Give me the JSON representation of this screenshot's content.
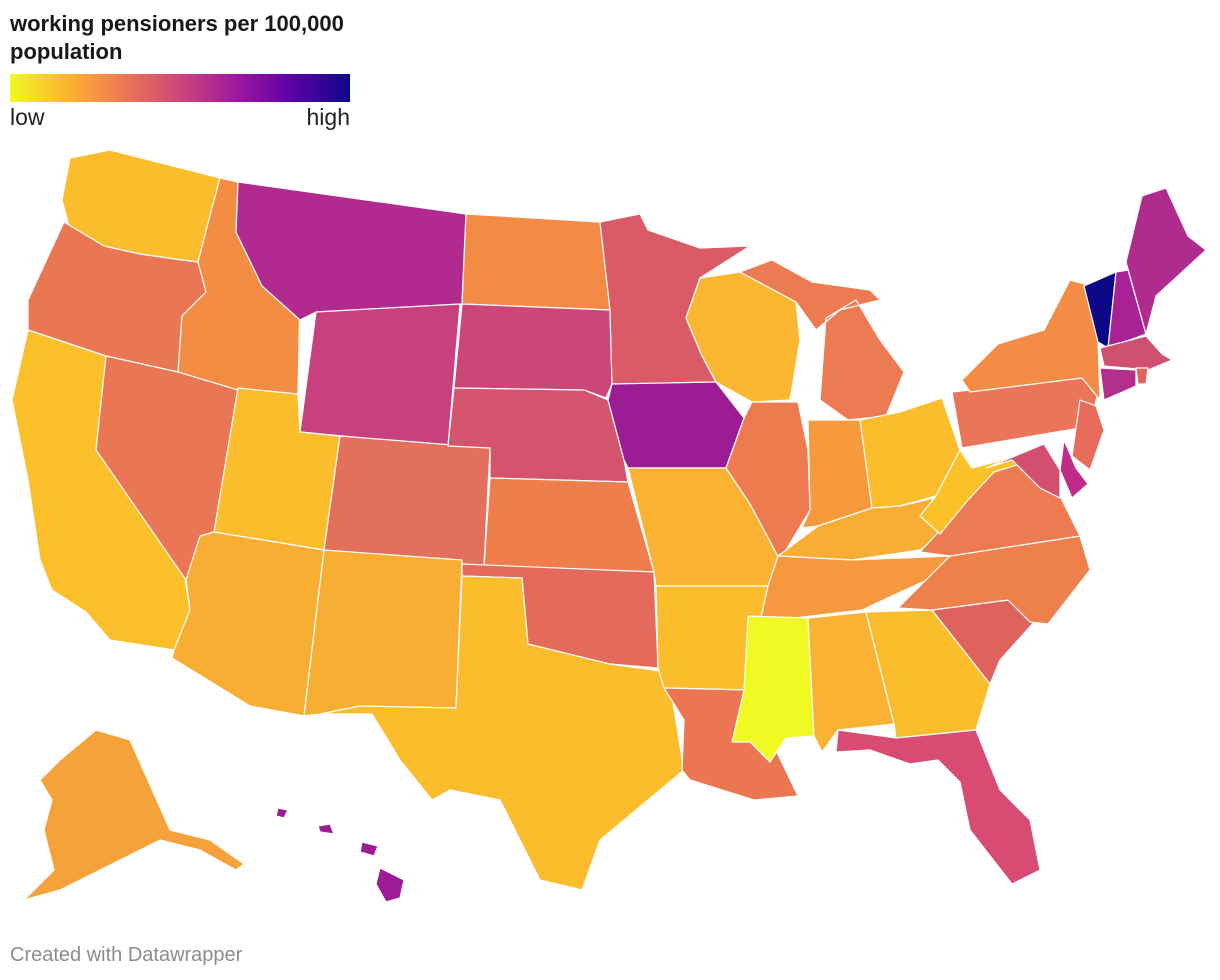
{
  "title": "working pensioners per 100,000 population",
  "legend": {
    "low_label": "low",
    "high_label": "high",
    "colors": [
      "#f0f921",
      "#fdb42f",
      "#ed7953",
      "#cc4778",
      "#9c179e",
      "#5c01a6",
      "#0d0887"
    ]
  },
  "credit": "Created with Datawrapper",
  "chart_data": {
    "type": "choropleth",
    "scale": "low to high",
    "states": [
      {
        "state": "Washington",
        "color": "#fbbd2b"
      },
      {
        "state": "Oregon",
        "color": "#eb7654"
      },
      {
        "state": "California",
        "color": "#fbbf29"
      },
      {
        "state": "Nevada",
        "color": "#ea7655"
      },
      {
        "state": "Idaho",
        "color": "#f38d44"
      },
      {
        "state": "Montana",
        "color": "#b22a8f"
      },
      {
        "state": "Wyoming",
        "color": "#c8407e"
      },
      {
        "state": "Utah",
        "color": "#fbbd2b"
      },
      {
        "state": "Arizona",
        "color": "#f8ae33"
      },
      {
        "state": "Colorado",
        "color": "#e2705b"
      },
      {
        "state": "New Mexico",
        "color": "#f8ae33"
      },
      {
        "state": "North Dakota",
        "color": "#f38b45"
      },
      {
        "state": "South Dakota",
        "color": "#cc4778"
      },
      {
        "state": "Nebraska",
        "color": "#d4536d"
      },
      {
        "state": "Kansas",
        "color": "#ee7f4d"
      },
      {
        "state": "Oklahoma",
        "color": "#e46b5c"
      },
      {
        "state": "Texas",
        "color": "#fbbd2b"
      },
      {
        "state": "Minnesota",
        "color": "#da5b67"
      },
      {
        "state": "Iowa",
        "color": "#9c1c96"
      },
      {
        "state": "Missouri",
        "color": "#f9b231"
      },
      {
        "state": "Arkansas",
        "color": "#fbbd2b"
      },
      {
        "state": "Louisiana",
        "color": "#ec7652"
      },
      {
        "state": "Wisconsin",
        "color": "#fbb732"
      },
      {
        "state": "Illinois",
        "color": "#ee7b4f"
      },
      {
        "state": "Michigan",
        "color": "#ec7a52"
      },
      {
        "state": "Indiana",
        "color": "#f69a3d"
      },
      {
        "state": "Ohio",
        "color": "#fbbd2b"
      },
      {
        "state": "Kentucky",
        "color": "#faad35"
      },
      {
        "state": "Tennessee",
        "color": "#f5983f"
      },
      {
        "state": "Mississippi",
        "color": "#f0f921"
      },
      {
        "state": "Alabama",
        "color": "#f9b231"
      },
      {
        "state": "Georgia",
        "color": "#fbbd2b"
      },
      {
        "state": "Florida",
        "color": "#d84b72"
      },
      {
        "state": "South Carolina",
        "color": "#e0625f"
      },
      {
        "state": "North Carolina",
        "color": "#ee804c"
      },
      {
        "state": "Virginia",
        "color": "#ed7a51"
      },
      {
        "state": "West Virginia",
        "color": "#fbc128"
      },
      {
        "state": "Pennsylvania",
        "color": "#ea7558"
      },
      {
        "state": "New York",
        "color": "#f38c44"
      },
      {
        "state": "Vermont",
        "color": "#0d0887"
      },
      {
        "state": "New Hampshire",
        "color": "#a82296"
      },
      {
        "state": "Maine",
        "color": "#b02b8e"
      },
      {
        "state": "Massachusetts",
        "color": "#d0516f"
      },
      {
        "state": "Rhode Island",
        "color": "#e0625f"
      },
      {
        "state": "Connecticut",
        "color": "#b42e8c"
      },
      {
        "state": "New Jersey",
        "color": "#e86c5c"
      },
      {
        "state": "Delaware",
        "color": "#c02d88"
      },
      {
        "state": "Maryland",
        "color": "#d54f71"
      },
      {
        "state": "Alaska",
        "color": "#f6a23a"
      },
      {
        "state": "Hawaii",
        "color": "#9c1c96"
      }
    ]
  }
}
